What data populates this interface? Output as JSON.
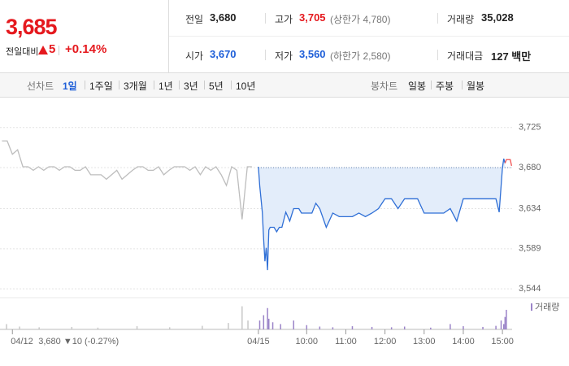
{
  "quote": {
    "price": "3,685",
    "change_label": "전일대비",
    "change": "5",
    "change_pct": "+0.14%",
    "color": "#e5191e"
  },
  "summary": [
    {
      "label": "전일",
      "value": "3,680",
      "color": "#222222"
    },
    {
      "label": "고가",
      "value": "3,705",
      "color": "#e5191e",
      "note": "(상한가 4,780)"
    },
    {
      "label": "거래량",
      "value": "35,028",
      "color": "#222222"
    },
    {
      "label": "시가",
      "value": "3,670",
      "color": "#1f5fd8"
    },
    {
      "label": "저가",
      "value": "3,560",
      "color": "#1f5fd8",
      "note": "(하한가 2,580)"
    },
    {
      "label": "거래대금",
      "value": "127 백만",
      "color": "#222222"
    }
  ],
  "tabs": {
    "line_label": "선차트",
    "line_periods": [
      "1일",
      "1주일",
      "3개월",
      "1년",
      "3년",
      "5년",
      "10년"
    ],
    "selected": 0,
    "candle_label": "봉차트",
    "candle_periods": [
      "일봉",
      "주봉",
      "월봉"
    ]
  },
  "chart_data": {
    "type": "line",
    "xlim": [
      -410,
      462
    ],
    "ylim": [
      3535,
      3754
    ],
    "xticks": [
      {
        "value": -391,
        "label": "04/12"
      },
      {
        "value": -14,
        "label": "04/15"
      },
      {
        "value": 60,
        "label": "10:00"
      },
      {
        "value": 120,
        "label": "11:00"
      },
      {
        "value": 180,
        "label": "12:00"
      },
      {
        "value": 240,
        "label": "13:00"
      },
      {
        "value": 300,
        "label": "14:00"
      },
      {
        "value": 360,
        "label": "15:00"
      }
    ],
    "yticks": [
      {
        "value": 3725,
        "label": "3,725"
      },
      {
        "value": 3680,
        "label": "3,680"
      },
      {
        "value": 3634,
        "label": "3,634"
      },
      {
        "value": 3589,
        "label": "3,589"
      },
      {
        "value": 3544,
        "label": "3,544"
      }
    ],
    "grid": true,
    "baseline": 3680,
    "prev_close_note": "3,680 ▼10 (-0.27%)",
    "note_color": "#1f5fd8",
    "series": [
      {
        "color": "#bdbdbd",
        "x": [
          -407,
          -399,
          -391,
          -383,
          -375,
          -367,
          -359,
          -351,
          -343,
          -335,
          -327,
          -319,
          -311,
          -303,
          -295,
          -287,
          -279,
          -271,
          -263,
          -255,
          -247,
          -239,
          -231,
          -223,
          -215,
          -207,
          -199,
          -191,
          -183,
          -175,
          -167,
          -159,
          -151,
          -143,
          -135,
          -127,
          -119,
          -111,
          -103,
          -95,
          -87,
          -79,
          -71,
          -63,
          -55,
          -47,
          -39,
          -31,
          -24
        ],
        "values": [
          3710,
          3710,
          3695,
          3700,
          3681,
          3681,
          3677,
          3681,
          3677,
          3681,
          3681,
          3677,
          3681,
          3681,
          3677,
          3677,
          3681,
          3672,
          3672,
          3672,
          3667,
          3672,
          3677,
          3667,
          3672,
          3677,
          3681,
          3681,
          3677,
          3677,
          3681,
          3672,
          3677,
          3681,
          3681,
          3681,
          3677,
          3681,
          3672,
          3681,
          3677,
          3681,
          3672,
          3660,
          3681,
          3677,
          3622,
          3681,
          3681
        ]
      },
      {
        "color": "#2f6fd6",
        "fill": "#e3edfa",
        "x": [
          -14,
          -12,
          -10,
          -8,
          -6,
          -4,
          -2,
          0,
          2,
          4,
          6,
          10,
          14,
          18,
          22,
          28,
          34,
          40,
          44,
          48,
          52,
          56,
          62,
          68,
          74,
          80,
          90,
          100,
          110,
          120,
          130,
          140,
          150,
          160,
          170,
          180,
          190,
          200,
          210,
          220,
          230,
          240,
          250,
          260,
          270,
          280,
          290,
          300,
          310,
          320,
          330,
          340,
          350,
          355,
          358,
          360,
          362,
          364
        ],
        "values": [
          3681,
          3660,
          3645,
          3630,
          3600,
          3575,
          3590,
          3565,
          3610,
          3613,
          3613,
          3613,
          3608,
          3613,
          3613,
          3630,
          3620,
          3634,
          3634,
          3634,
          3629,
          3629,
          3629,
          3629,
          3640,
          3634,
          3613,
          3629,
          3625,
          3625,
          3625,
          3629,
          3625,
          3629,
          3634,
          3645,
          3645,
          3634,
          3645,
          3645,
          3645,
          3629,
          3629,
          3629,
          3629,
          3634,
          3620,
          3645,
          3645,
          3645,
          3645,
          3645,
          3645,
          3630,
          3660,
          3680,
          3690,
          3685
        ]
      },
      {
        "color": "#f05050",
        "x": [
          364,
          366,
          372,
          374
        ],
        "values": [
          3685,
          3689,
          3689,
          3682
        ]
      }
    ],
    "volume": {
      "label": "거래량",
      "ylim": [
        0,
        8000
      ],
      "series": [
        {
          "color": "#c8c8c8",
          "x": [
            -400,
            -380,
            -350,
            -300,
            -260,
            -200,
            -150,
            -100,
            -60,
            -39,
            -30
          ],
          "values": [
            1500,
            800,
            600,
            700,
            500,
            900,
            600,
            1000,
            1800,
            6500,
            2500
          ]
        },
        {
          "color": "#9b84c8",
          "x": [
            -12,
            -6,
            0,
            2,
            8,
            20,
            40,
            60,
            80,
            100,
            130,
            160,
            190,
            210,
            250,
            280,
            300,
            330,
            350,
            358,
            362,
            364,
            366
          ],
          "values": [
            2500,
            4000,
            6000,
            3000,
            2000,
            1500,
            2500,
            1200,
            800,
            600,
            900,
            700,
            600,
            800,
            500,
            1500,
            900,
            700,
            1000,
            2500,
            1500,
            3500,
            5500
          ]
        }
      ]
    }
  }
}
